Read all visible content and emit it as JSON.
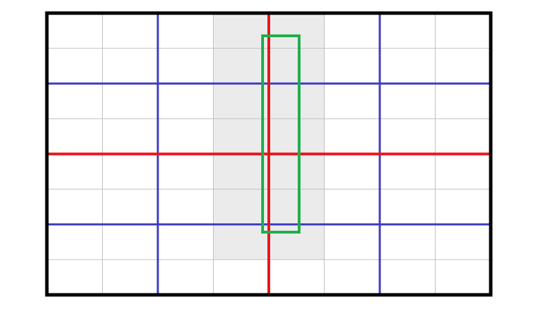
{
  "colors": {
    "background": "#ffffff",
    "frame": "#000000",
    "fine_grid": "#c0c0c0",
    "major_grid": "#3c3cbf",
    "center_axis": "#e8161c",
    "highlight_band": "#ebebeb",
    "selection_box": "#1fae4a"
  },
  "grid": {
    "fine_columns": 8,
    "fine_rows": 8,
    "major_columns": 4,
    "major_rows": 4
  }
}
